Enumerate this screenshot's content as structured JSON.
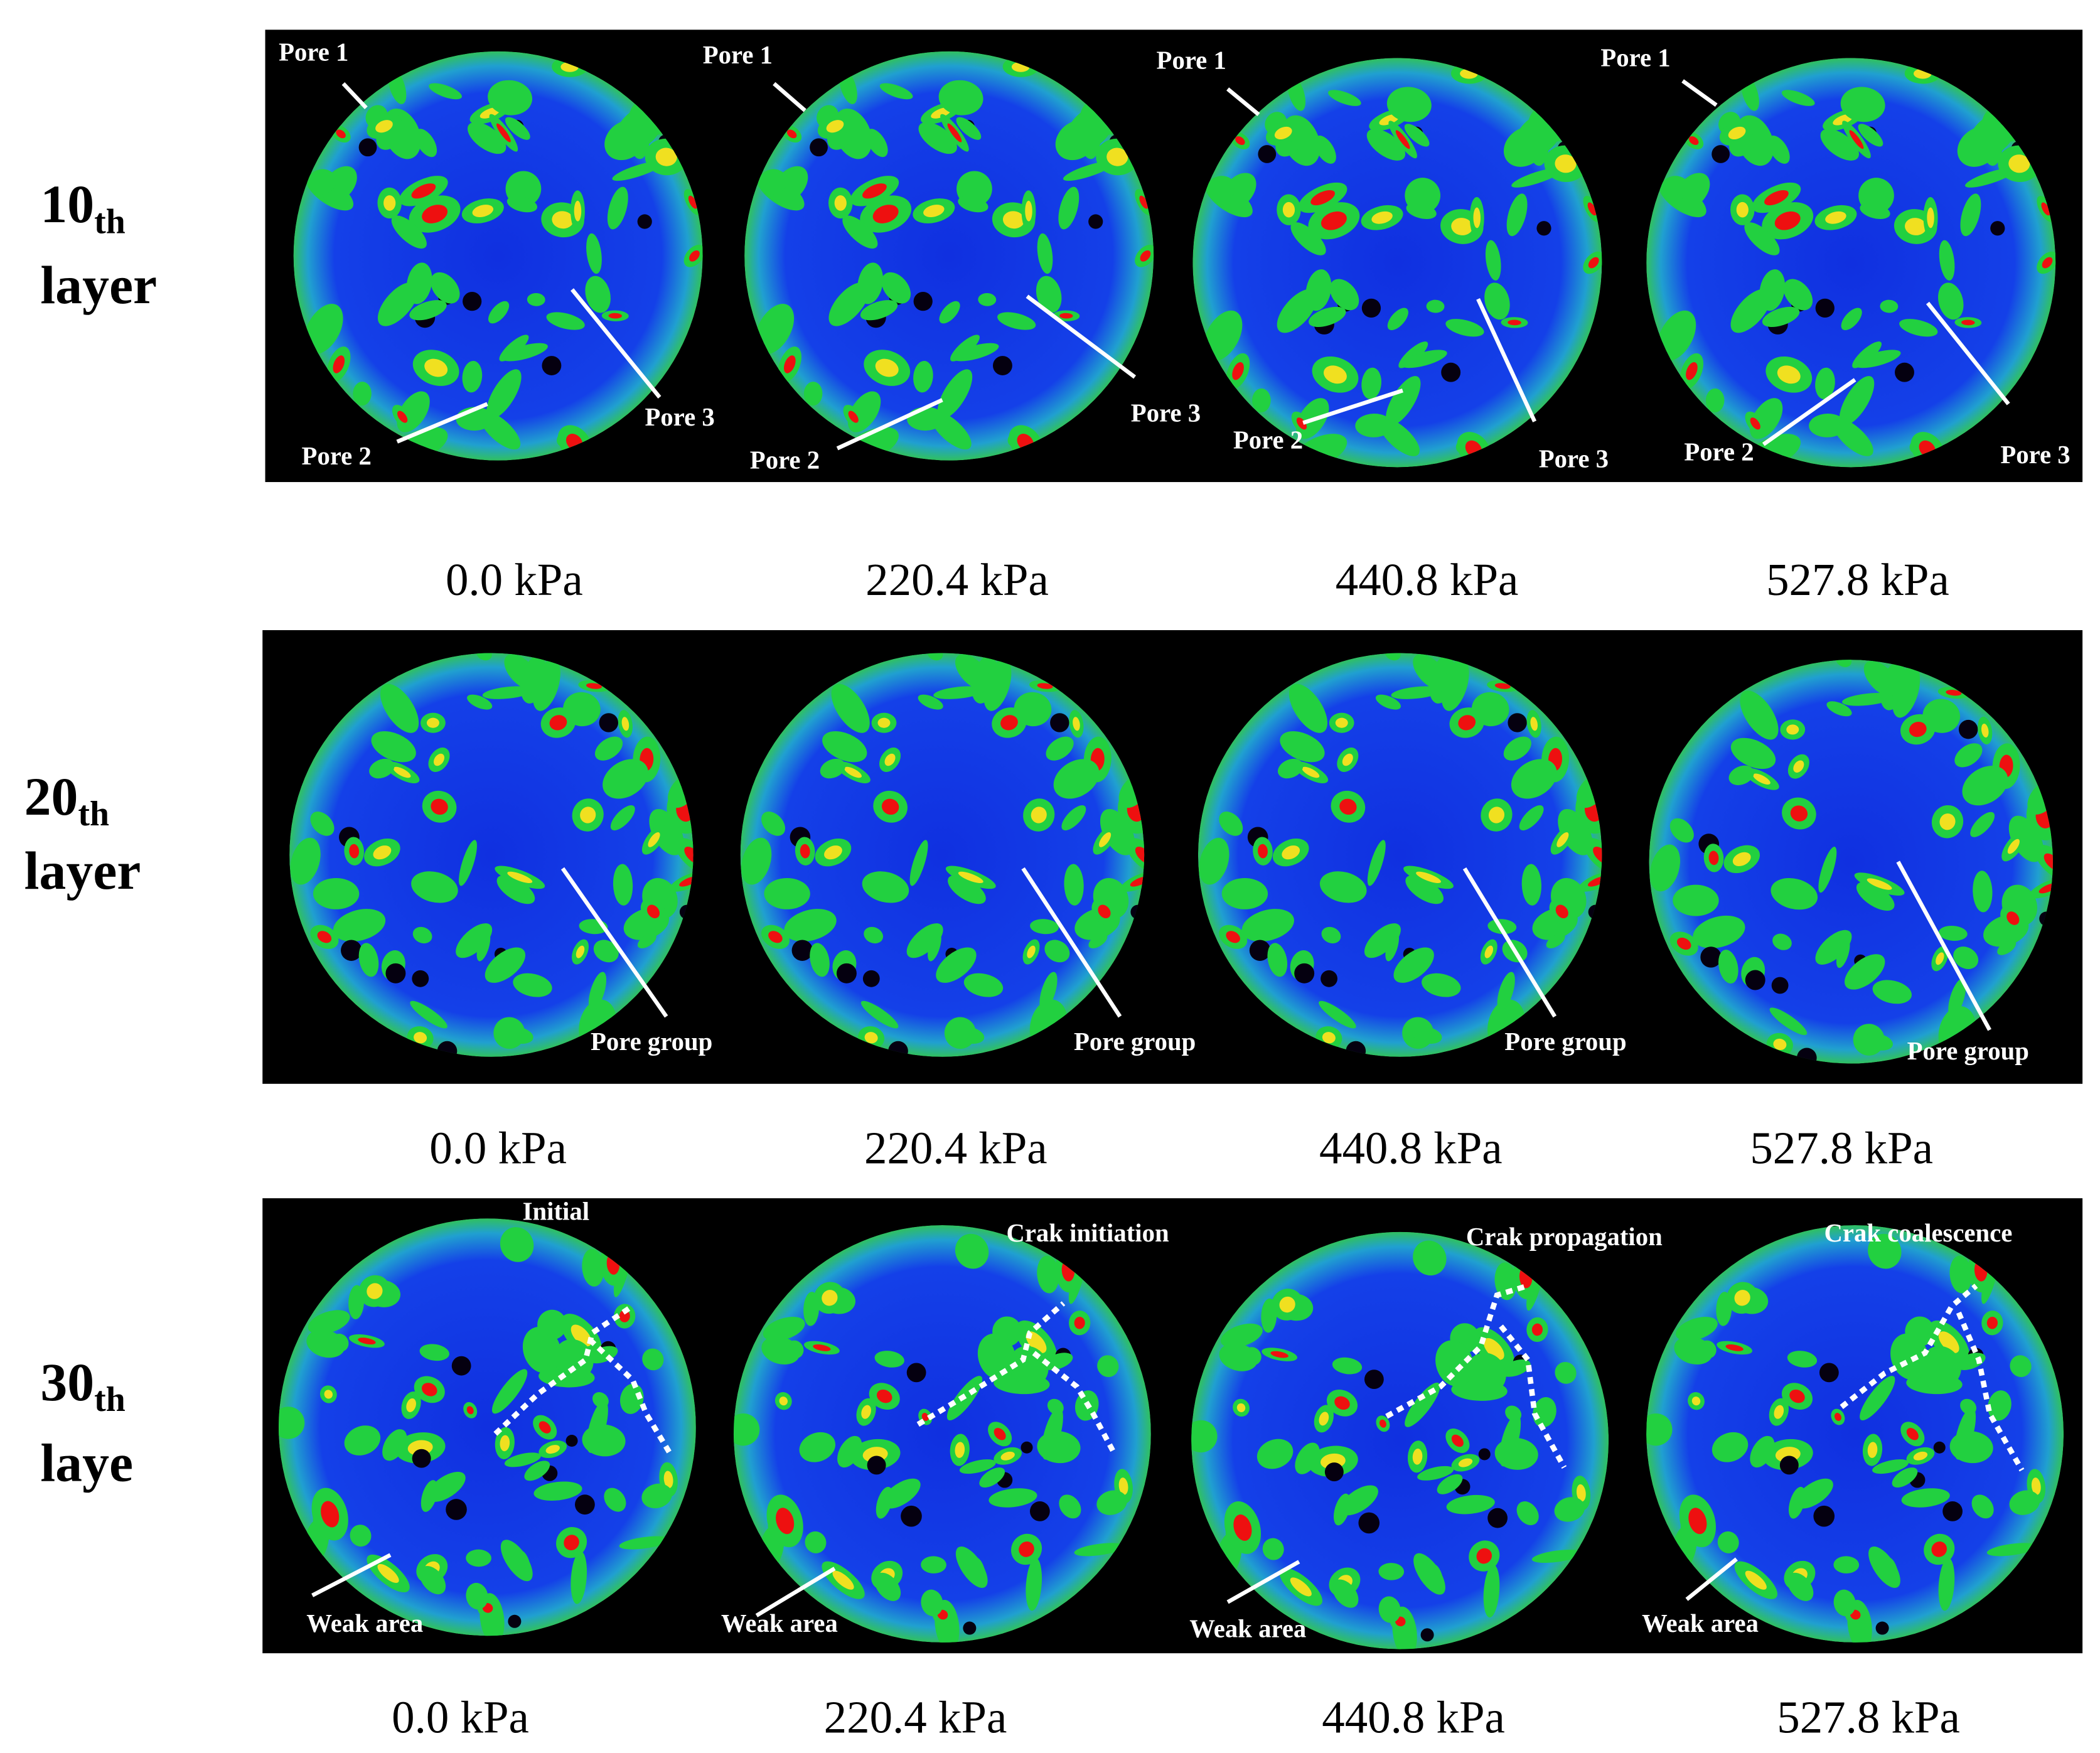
{
  "rows": [
    {
      "layer_number": "10",
      "layer_suffix": "th",
      "layer_word": "layer",
      "panels": [
        {
          "labels": [
            "Pore 1",
            "Pore 2",
            "Pore 3"
          ]
        },
        {
          "labels": [
            "Pore 1",
            "Pore 2",
            "Pore 3"
          ]
        },
        {
          "labels": [
            "Pore 1",
            "Pore 2",
            "Pore 3"
          ]
        },
        {
          "labels": [
            "Pore 1",
            "Pore 2",
            "Pore 3"
          ]
        }
      ],
      "pressures": [
        "0.0 kPa",
        "220.4 kPa",
        "440.8 kPa",
        "527.8 kPa"
      ]
    },
    {
      "layer_number": "20",
      "layer_suffix": "th",
      "layer_word": "layer",
      "panels": [
        {
          "labels": [
            "Pore group"
          ]
        },
        {
          "labels": [
            "Pore group"
          ]
        },
        {
          "labels": [
            "Pore group"
          ]
        },
        {
          "labels": [
            "Pore group"
          ]
        }
      ],
      "pressures": [
        "0.0 kPa",
        "220.4 kPa",
        "440.8 kPa",
        "527.8 kPa"
      ]
    },
    {
      "layer_number": "30",
      "layer_suffix": "th",
      "layer_word": "laye",
      "panels": [
        {
          "stage": "Initial",
          "labels": [
            "Weak area"
          ]
        },
        {
          "stage": "Crak initiation",
          "labels": [
            "Weak area"
          ]
        },
        {
          "stage": "Crak propagation",
          "labels": [
            "Weak area"
          ]
        },
        {
          "stage": "Crak coalescence",
          "labels": [
            "Weak area"
          ]
        }
      ],
      "pressures": [
        "0.0 kPa",
        "220.4 kPa",
        "440.8 kPa",
        "527.8 kPa"
      ]
    }
  ]
}
